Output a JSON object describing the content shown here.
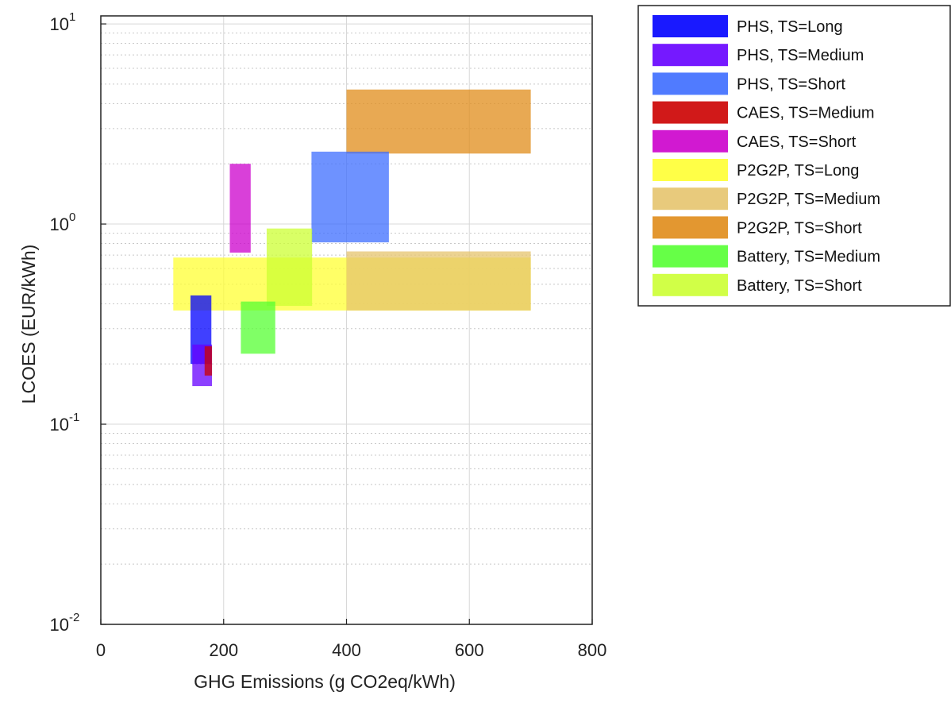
{
  "chart_data": {
    "type": "area",
    "xlabel": "GHG Emissions (g CO2eq/kWh)",
    "ylabel": "LCOES (EUR/kWh)",
    "xlim": [
      0,
      800
    ],
    "ylim": [
      0.01,
      10
    ],
    "yscale": "log",
    "x_ticks": [
      "0",
      "200",
      "400",
      "600",
      "800"
    ],
    "y_ticks": [
      {
        "base": "10",
        "exp": "-2"
      },
      {
        "base": "10",
        "exp": "-1"
      },
      {
        "base": "10",
        "exp": "0"
      },
      {
        "base": "10",
        "exp": "1"
      }
    ],
    "grid": true,
    "legend_position": "outside-right",
    "series": [
      {
        "name": "PHS, TS=Long",
        "color": "#0000ff",
        "x_range": [
          146,
          180
        ],
        "y_range": [
          0.2,
          0.44
        ]
      },
      {
        "name": "PHS, TS=Medium",
        "color": "#6600ff",
        "x_range": [
          149,
          181
        ],
        "y_range": [
          0.155,
          0.25
        ]
      },
      {
        "name": "PHS, TS=Short",
        "color": "#3d6dff",
        "x_range": [
          343,
          469
        ],
        "y_range": [
          0.81,
          2.3
        ]
      },
      {
        "name": "CAES, TS=Medium",
        "color": "#cc0000",
        "x_range": [
          169,
          181
        ],
        "y_range": [
          0.175,
          0.245
        ]
      },
      {
        "name": "CAES, TS=Short",
        "color": "#cc00cc",
        "x_range": [
          210,
          244
        ],
        "y_range": [
          0.72,
          2.0
        ]
      },
      {
        "name": "P2G2P, TS=Long",
        "color": "#ffff33",
        "x_range": [
          118,
          700
        ],
        "y_range": [
          0.37,
          0.68
        ]
      },
      {
        "name": "P2G2P, TS=Medium",
        "color": "#e6c46e",
        "x_range": [
          400,
          700
        ],
        "y_range": [
          0.37,
          0.73
        ]
      },
      {
        "name": "P2G2P, TS=Short",
        "color": "#e08c1a",
        "x_range": [
          400,
          700
        ],
        "y_range": [
          2.25,
          4.7
        ]
      },
      {
        "name": "Battery, TS=Medium",
        "color": "#55ff33",
        "x_range": [
          228,
          284
        ],
        "y_range": [
          0.225,
          0.41
        ]
      },
      {
        "name": "Battery, TS=Short",
        "color": "#ccff33",
        "x_range": [
          270,
          344
        ],
        "y_range": [
          0.39,
          0.95
        ]
      }
    ]
  }
}
